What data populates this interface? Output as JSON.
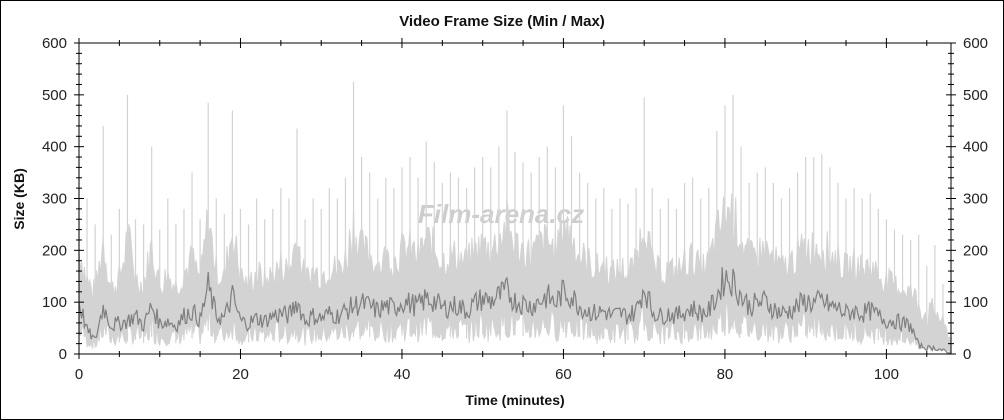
{
  "chart_data": {
    "type": "area",
    "title": "Video Frame Size (Min / Max)",
    "xlabel": "Time (minutes)",
    "ylabel": "Size (KB)",
    "xlim": [
      0,
      108
    ],
    "ylim": [
      0,
      600
    ],
    "x_ticks": [
      0,
      20,
      40,
      60,
      80,
      100
    ],
    "y_ticks": [
      0,
      100,
      200,
      300,
      400,
      500,
      600
    ],
    "y_axis_right": true,
    "grid": false,
    "watermark": "Film-arena.cz",
    "colors": {
      "max": "#d3d3d3",
      "min": "#7f7f7f"
    },
    "x": [
      0,
      1,
      2,
      3,
      4,
      5,
      6,
      7,
      8,
      9,
      10,
      11,
      12,
      13,
      14,
      15,
      16,
      17,
      18,
      19,
      20,
      21,
      22,
      23,
      24,
      25,
      26,
      27,
      28,
      29,
      30,
      31,
      32,
      33,
      34,
      35,
      36,
      37,
      38,
      39,
      40,
      41,
      42,
      43,
      44,
      45,
      46,
      47,
      48,
      49,
      50,
      51,
      52,
      53,
      54,
      55,
      56,
      57,
      58,
      59,
      60,
      61,
      62,
      63,
      64,
      65,
      66,
      67,
      68,
      69,
      70,
      71,
      72,
      73,
      74,
      75,
      76,
      77,
      78,
      79,
      80,
      81,
      82,
      83,
      84,
      85,
      86,
      87,
      88,
      89,
      90,
      91,
      92,
      93,
      94,
      95,
      96,
      97,
      98,
      99,
      100,
      101,
      102,
      103,
      104,
      105,
      106,
      107,
      108
    ],
    "series": [
      {
        "key": "max",
        "values": [
          370,
          300,
          250,
          440,
          230,
          280,
          500,
          260,
          250,
          400,
          240,
          300,
          250,
          280,
          350,
          260,
          485,
          300,
          270,
          470,
          280,
          250,
          300,
          260,
          280,
          320,
          300,
          435,
          260,
          300,
          280,
          320,
          300,
          340,
          525,
          380,
          350,
          300,
          340,
          320,
          360,
          380,
          340,
          410,
          370,
          330,
          350,
          340,
          320,
          360,
          380,
          360,
          400,
          470,
          390,
          370,
          350,
          380,
          400,
          360,
          480,
          420,
          350,
          330,
          300,
          320,
          280,
          300,
          290,
          320,
          495,
          320,
          280,
          300,
          280,
          330,
          340,
          300,
          320,
          430,
          480,
          500,
          400,
          330,
          350,
          360,
          330,
          300,
          320,
          350,
          380,
          380,
          385,
          360,
          330,
          300,
          320,
          300,
          310,
          280,
          260,
          240,
          230,
          220,
          230,
          170,
          210,
          135,
          60
        ]
      },
      {
        "key": "min",
        "values": [
          120,
          60,
          40,
          110,
          70,
          75,
          80,
          90,
          70,
          110,
          75,
          80,
          70,
          90,
          100,
          80,
          150,
          90,
          85,
          130,
          80,
          75,
          85,
          80,
          90,
          95,
          90,
          120,
          80,
          90,
          85,
          95,
          90,
          100,
          110,
          115,
          110,
          100,
          110,
          105,
          120,
          115,
          110,
          125,
          120,
          105,
          110,
          110,
          100,
          115,
          125,
          120,
          130,
          140,
          120,
          115,
          110,
          120,
          130,
          115,
          140,
          130,
          110,
          100,
          95,
          100,
          90,
          95,
          90,
          100,
          150,
          100,
          90,
          95,
          90,
          100,
          105,
          95,
          100,
          130,
          170,
          160,
          130,
          110,
          115,
          120,
          105,
          95,
          100,
          110,
          120,
          115,
          120,
          110,
          105,
          95,
          100,
          95,
          100,
          90,
          80,
          80,
          75,
          70,
          30,
          25,
          25,
          20,
          10
        ]
      }
    ]
  }
}
